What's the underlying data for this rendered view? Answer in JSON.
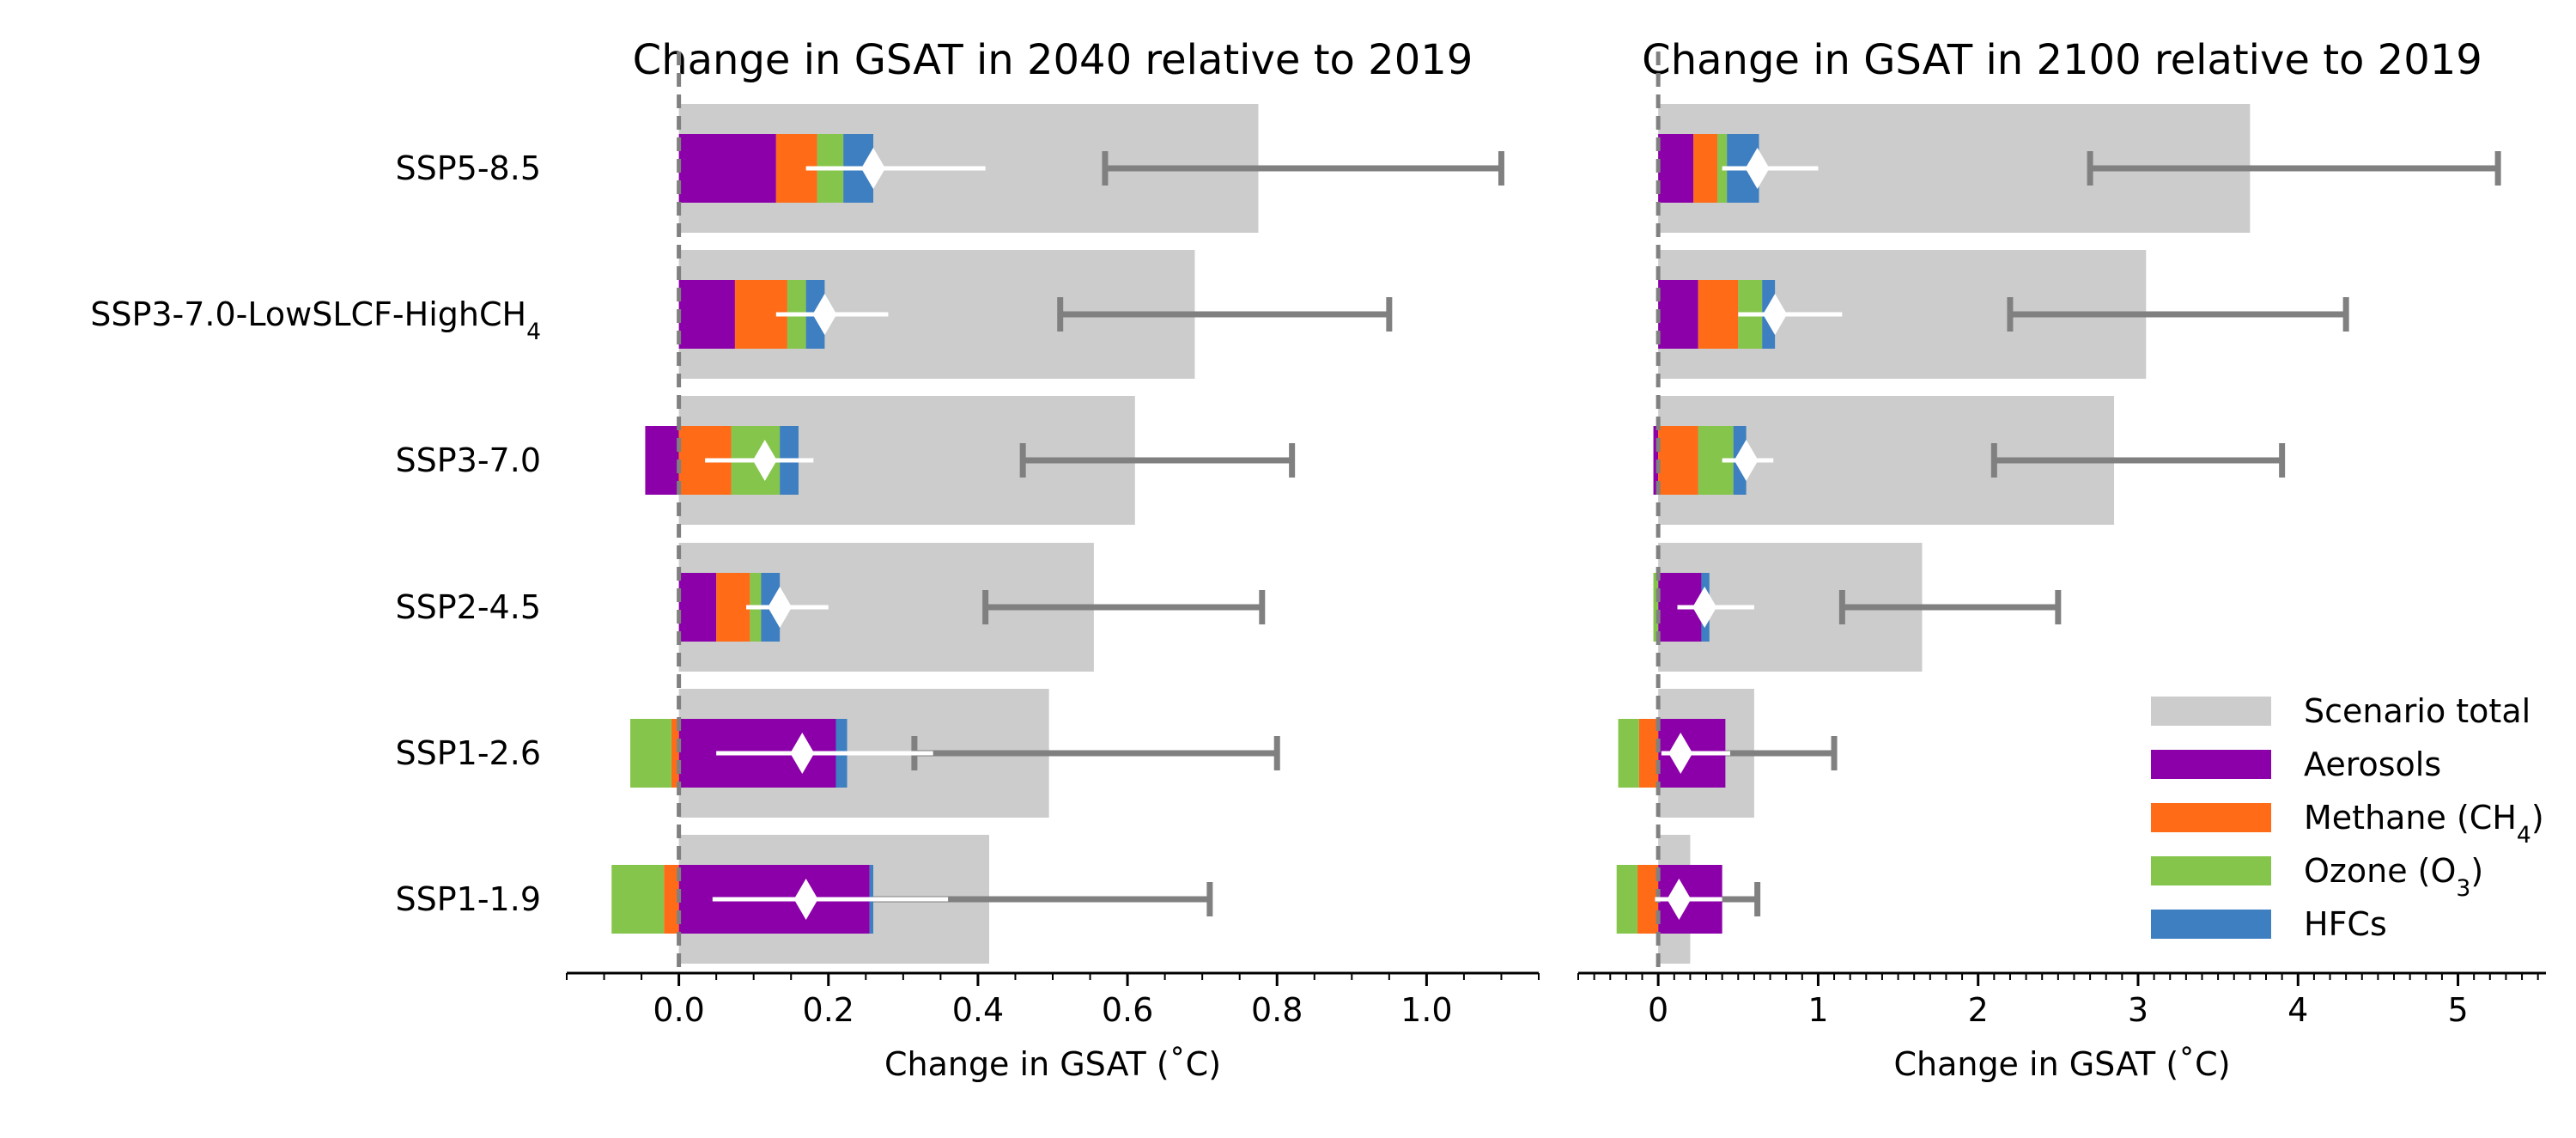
{
  "chart_data": {
    "type": "bar",
    "orientation": "horizontal",
    "categories": [
      {
        "label": "SSP5-8.5",
        "sub": ""
      },
      {
        "label": "SSP3-7.0-LowSLCF-HighCH",
        "sub": "4"
      },
      {
        "label": "SSP3-7.0",
        "sub": ""
      },
      {
        "label": "SSP2-4.5",
        "sub": ""
      },
      {
        "label": "SSP1-2.6",
        "sub": ""
      },
      {
        "label": "SSP1-1.9",
        "sub": ""
      }
    ],
    "colors": {
      "scenario_total": "#cccccc",
      "aerosols": "#8c00a9",
      "methane": "#ff6b17",
      "ozone": "#85c54c",
      "hfcs": "#3d7fc1",
      "total_errorbar": "#808080",
      "slcf_marker": "#ffffff",
      "zero_line": "#808080"
    },
    "legend": {
      "position": "lower-right",
      "entries": [
        {
          "key": "scenario_total",
          "label": "Scenario total",
          "sub": "",
          "suffix": ""
        },
        {
          "key": "aerosols",
          "label": "Aerosols",
          "sub": "",
          "suffix": ""
        },
        {
          "key": "methane",
          "label": "Methane (CH",
          "sub": "4",
          "suffix": ")"
        },
        {
          "key": "ozone",
          "label": "Ozone (O",
          "sub": "3",
          "suffix": ")"
        },
        {
          "key": "hfcs",
          "label": "HFCs",
          "sub": "",
          "suffix": ""
        }
      ]
    },
    "panels": [
      {
        "title": "Change in GSAT in 2040 relative to 2019",
        "xlabel": "Change in GSAT (˚C)",
        "xlim": [
          -0.15,
          1.15
        ],
        "major_ticks": [
          0.0,
          0.2,
          0.4,
          0.6,
          0.8,
          1.0
        ],
        "tick_labels": [
          "0.0",
          "0.2",
          "0.4",
          "0.6",
          "0.8",
          "1.0"
        ],
        "minor_step": 0.05,
        "scenario_total": [
          0.775,
          0.69,
          0.61,
          0.555,
          0.495,
          0.415
        ],
        "total_range": [
          [
            0.57,
            1.1
          ],
          [
            0.51,
            0.95
          ],
          [
            0.46,
            0.82
          ],
          [
            0.41,
            0.78
          ],
          [
            0.315,
            0.8
          ],
          [
            0.235,
            0.71
          ]
        ],
        "components": {
          "aerosols": [
            0.13,
            0.075,
            -0.045,
            0.05,
            0.21,
            0.255
          ],
          "methane": [
            0.055,
            0.07,
            0.07,
            0.045,
            -0.01,
            -0.02
          ],
          "ozone": [
            0.035,
            0.025,
            0.065,
            0.015,
            -0.055,
            -0.07
          ],
          "hfcs": [
            0.04,
            0.025,
            0.025,
            0.025,
            0.015,
            0.005
          ]
        },
        "slcf_net": [
          0.26,
          0.195,
          0.115,
          0.135,
          0.165,
          0.17
        ],
        "slcf_range": [
          [
            0.17,
            0.41
          ],
          [
            0.13,
            0.28
          ],
          [
            0.035,
            0.18
          ],
          [
            0.09,
            0.2
          ],
          [
            0.05,
            0.34
          ],
          [
            0.045,
            0.36
          ]
        ]
      },
      {
        "title": "Change in GSAT in 2100 relative to 2019",
        "xlabel": "Change in GSAT (˚C)",
        "xlim": [
          -0.5,
          5.55
        ],
        "major_ticks": [
          0,
          1,
          2,
          3,
          4,
          5
        ],
        "tick_labels": [
          "0",
          "1",
          "2",
          "3",
          "4",
          "5"
        ],
        "minor_step": 0.1,
        "scenario_total": [
          3.7,
          3.05,
          2.85,
          1.65,
          0.6,
          0.2
        ],
        "total_range": [
          [
            2.7,
            5.25
          ],
          [
            2.2,
            4.3
          ],
          [
            2.1,
            3.9
          ],
          [
            1.15,
            2.5
          ],
          [
            0.25,
            1.1
          ],
          [
            0.0,
            0.62
          ]
        ],
        "components": {
          "aerosols": [
            0.22,
            0.25,
            -0.03,
            0.27,
            0.42,
            0.4
          ],
          "methane": [
            0.15,
            0.25,
            0.25,
            0.0,
            -0.12,
            -0.13
          ],
          "ozone": [
            0.06,
            0.15,
            0.22,
            -0.03,
            -0.13,
            -0.13
          ],
          "hfcs": [
            0.2,
            0.08,
            0.08,
            0.05,
            0.0,
            0.0
          ]
        },
        "slcf_net": [
          0.62,
          0.73,
          0.55,
          0.29,
          0.14,
          0.13
        ],
        "slcf_range": [
          [
            0.4,
            1.0
          ],
          [
            0.5,
            1.15
          ],
          [
            0.4,
            0.72
          ],
          [
            0.12,
            0.6
          ],
          [
            0.02,
            0.45
          ],
          [
            -0.02,
            0.4
          ]
        ]
      }
    ]
  }
}
